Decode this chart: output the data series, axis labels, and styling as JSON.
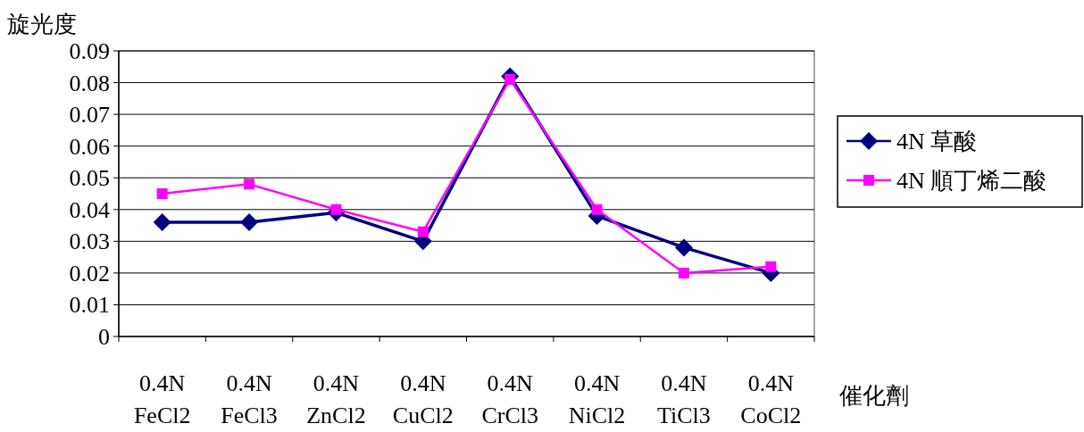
{
  "chart_data": {
    "type": "line",
    "ylabel": "旋光度",
    "xlabel": "催化劑",
    "categories": [
      "0.4N FeCl2",
      "0.4N FeCl3",
      "0.4N ZnCl2",
      "0.4N CuCl2",
      "0.4N CrCl3",
      "0.4N NiCl2",
      "0.4N TiCl3",
      "0.4N CoCl2"
    ],
    "series": [
      {
        "name": "4N 草酸",
        "color": "#000080",
        "marker": "diamond",
        "values": [
          0.036,
          0.036,
          0.039,
          0.03,
          0.082,
          0.038,
          0.028,
          0.02
        ]
      },
      {
        "name": "4N 順丁烯二酸",
        "color": "#ff00ff",
        "marker": "square",
        "values": [
          0.045,
          0.048,
          0.04,
          0.033,
          0.081,
          0.04,
          0.02,
          0.022
        ]
      }
    ],
    "ylim": [
      0,
      0.09
    ],
    "yticks": [
      0,
      0.01,
      0.02,
      0.03,
      0.04,
      0.05,
      0.06,
      0.07,
      0.08,
      0.09
    ],
    "grid": "y",
    "legend": "right",
    "line_style": "solid"
  }
}
